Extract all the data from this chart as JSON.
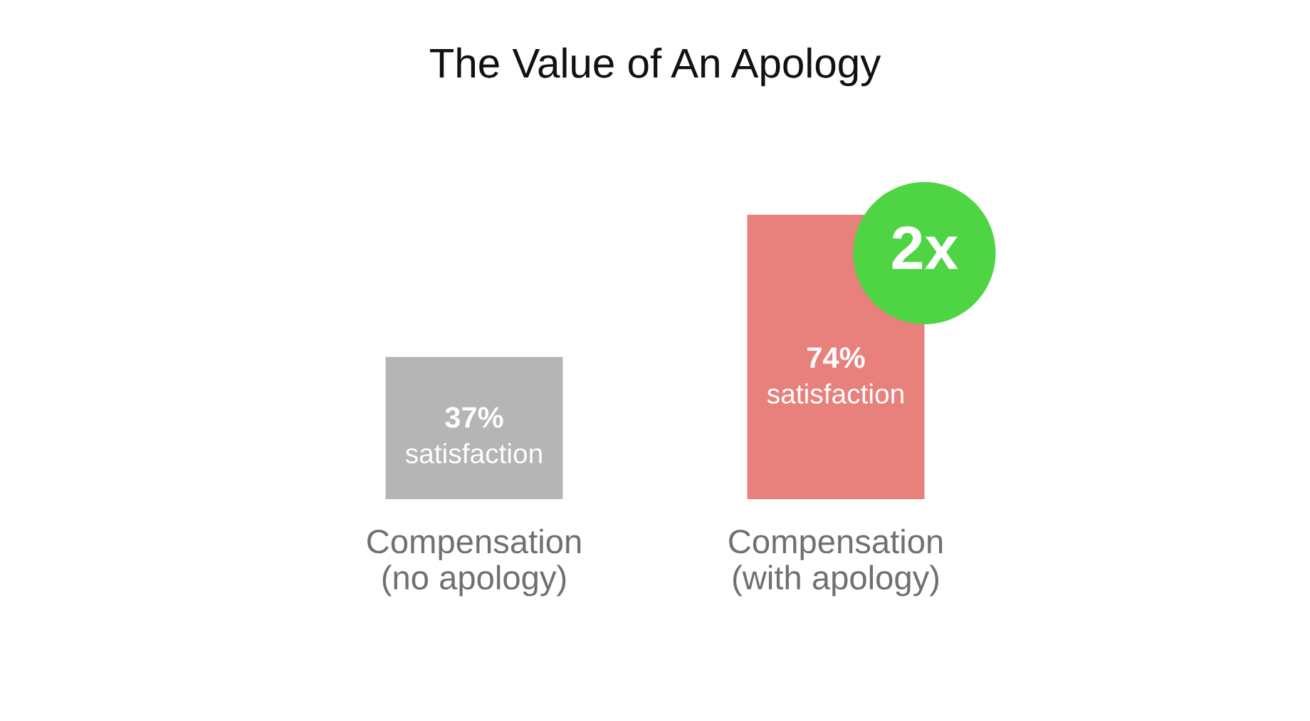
{
  "chart_data": {
    "type": "bar",
    "title": "The Value of An Apology",
    "categories": [
      "Compensation\n(no apology)",
      "Compensation\n(with apology)"
    ],
    "values": [
      37,
      74
    ],
    "colors": [
      "#b5b5b5",
      "#e8817c"
    ],
    "value_labels": [
      "37%\nsatisfaction",
      "74%\nsatisfaction"
    ],
    "annotations": [
      {
        "text": "2x",
        "x": "Compensation\n(with apology)",
        "y": 74
      }
    ]
  }
}
